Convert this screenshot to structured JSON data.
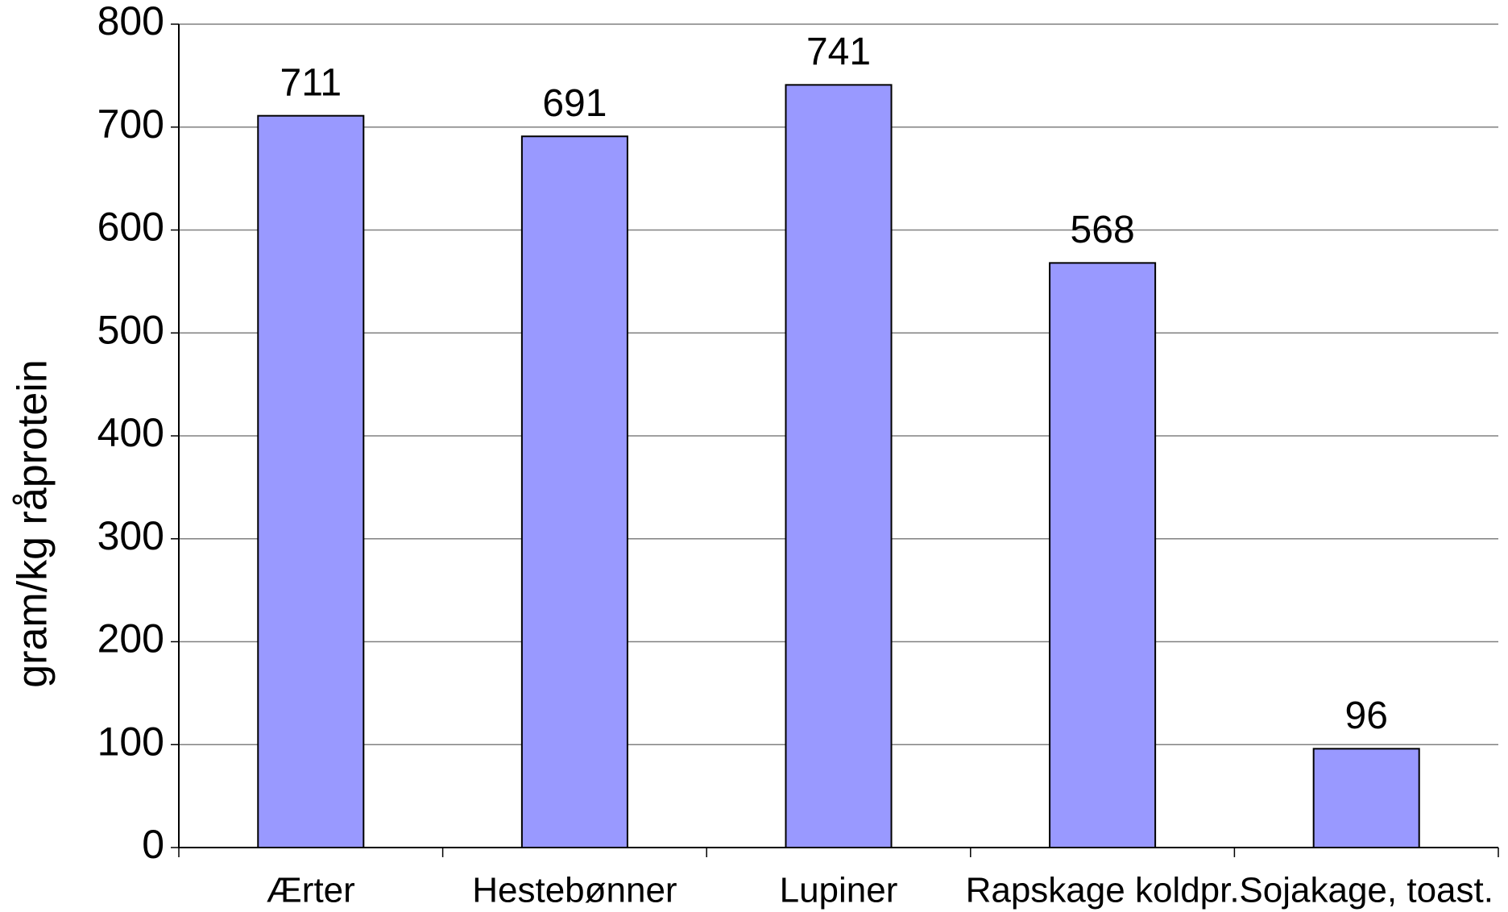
{
  "chart_data": {
    "type": "bar",
    "y_label": "gram/kg råprotein",
    "categories": [
      "Ærter",
      "Hestebønner",
      "Lupiner",
      "Rapskage koldpr.",
      "Sojakage, toast."
    ],
    "values": [
      711,
      691,
      741,
      568,
      96
    ],
    "color": "#9999ff",
    "ylim": [
      0,
      800
    ],
    "yticks": [
      0,
      100,
      200,
      300,
      400,
      500,
      600,
      700,
      800
    ],
    "grid": true
  }
}
